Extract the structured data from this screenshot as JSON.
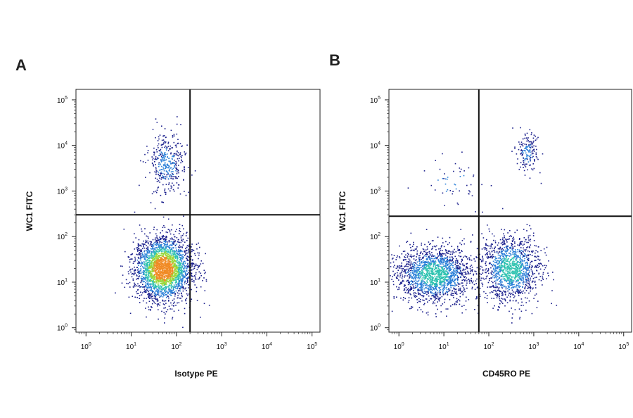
{
  "chart_data": [
    {
      "type": "scatter",
      "panel_label": "A",
      "xlabel": "Isotype PE",
      "ylabel": "WC1 FITC",
      "x_scale": "log",
      "y_scale": "log",
      "xlim": [
        0.6,
        150000
      ],
      "ylim": [
        0.8,
        170000
      ],
      "x_ticks": [
        "10^0",
        "10^1",
        "10^2",
        "10^3",
        "10^4",
        "10^5"
      ],
      "y_ticks": [
        "10^0",
        "10^1",
        "10^2",
        "10^3",
        "10^4",
        "10^5"
      ],
      "gate": {
        "x": 200,
        "y": 300
      },
      "populations": [
        {
          "name": "double-negative",
          "center": [
            50,
            20
          ],
          "spread_log": [
            0.32,
            0.35
          ],
          "count": 2600,
          "density": "high"
        },
        {
          "name": "WC1-positive",
          "center": [
            60,
            4000
          ],
          "spread_log": [
            0.22,
            0.35
          ],
          "count": 380,
          "density": "low"
        }
      ],
      "grid": false
    },
    {
      "type": "scatter",
      "panel_label": "B",
      "xlabel": "CD45RO PE",
      "ylabel": "WC1 FITC",
      "x_scale": "log",
      "y_scale": "log",
      "xlim": [
        0.6,
        150000
      ],
      "ylim": [
        0.8,
        170000
      ],
      "x_ticks": [
        "10^0",
        "10^1",
        "10^2",
        "10^3",
        "10^4",
        "10^5"
      ],
      "y_ticks": [
        "10^0",
        "10^1",
        "10^2",
        "10^3",
        "10^4",
        "10^5"
      ],
      "gate": {
        "x": 60,
        "y": 280
      },
      "populations": [
        {
          "name": "CD45RO-negative",
          "center": [
            6,
            15
          ],
          "spread_log": [
            0.42,
            0.3
          ],
          "count": 1700,
          "density": "medium"
        },
        {
          "name": "CD45RO-positive",
          "center": [
            300,
            20
          ],
          "spread_log": [
            0.32,
            0.35
          ],
          "count": 1300,
          "density": "medium"
        },
        {
          "name": "WC1-positive CD45RO-positive",
          "center": [
            700,
            7000
          ],
          "spread_log": [
            0.12,
            0.22
          ],
          "count": 160,
          "density": "low"
        },
        {
          "name": "WC1-positive CD45RO-negative",
          "center": [
            15,
            1500
          ],
          "spread_log": [
            0.35,
            0.25
          ],
          "count": 50,
          "density": "low"
        }
      ],
      "grid": false
    }
  ],
  "colors": {
    "low_density": "#1a1f8c",
    "mid_density": "#2a7fd8",
    "high_density_1": "#2fc3b0",
    "high_density_2": "#9ad83a",
    "peak_density": "#f08a24"
  }
}
